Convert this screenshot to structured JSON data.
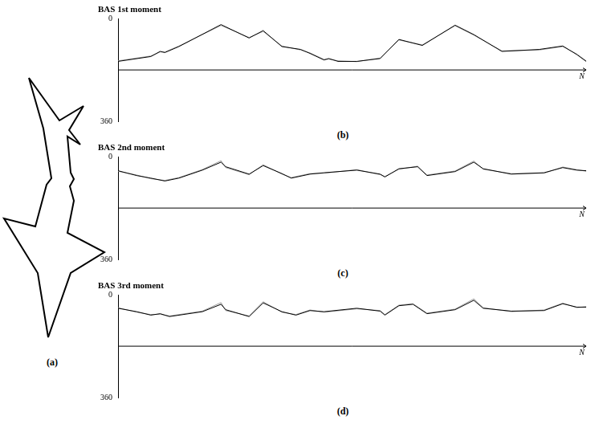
{
  "figure": {
    "panel_a_label": "(a)"
  },
  "chart_data": [
    {
      "type": "line",
      "title": "BAS 1st moment",
      "annotation": "(b)",
      "xlabel": "N",
      "x": [
        0,
        7,
        9,
        10,
        13,
        22,
        28,
        31,
        35,
        39,
        41,
        44,
        45,
        47,
        51,
        56,
        60,
        65,
        72,
        76,
        82,
        90,
        95,
        98,
        100
      ],
      "xlim": [
        0,
        100
      ],
      "ylim": [
        360,
        0
      ],
      "yticks": [
        0,
        360
      ],
      "grid": false,
      "tick_labels": "y",
      "series": [
        {
          "color": "#000000",
          "values": [
            150,
            133,
            115,
            119,
            98,
            21,
            68,
            42,
            98,
            108,
            122,
            145,
            140,
            150,
            150,
            140,
            73,
            94,
            23,
            56,
            115,
            108,
            96,
            126,
            150
          ]
        },
        {
          "color": "#a0a0a0",
          "values": [
            148,
            131,
            117,
            117,
            96,
            24,
            66,
            45,
            96,
            110,
            120,
            143,
            142,
            148,
            151,
            138,
            75,
            92,
            25,
            58,
            113,
            110,
            98,
            124,
            148
          ]
        }
      ]
    },
    {
      "type": "line",
      "title": "BAS 2nd moment",
      "annotation": "(c)",
      "xlabel": "N",
      "x": [
        0,
        4,
        7,
        10,
        13,
        18,
        22,
        23,
        28,
        31,
        35,
        37,
        41,
        44,
        51,
        56,
        57,
        60,
        64,
        66,
        72,
        76,
        78,
        84,
        91,
        95,
        98,
        100
      ],
      "xlim": [
        0,
        100
      ],
      "ylim": [
        360,
        0
      ],
      "yticks": [
        0,
        360
      ],
      "grid": false,
      "tick_labels": "y",
      "series": [
        {
          "color": "#000000",
          "values": [
            49,
            66,
            75,
            85,
            75,
            47,
            19,
            35,
            61,
            31,
            59,
            75,
            61,
            56,
            47,
            61,
            71,
            42,
            35,
            66,
            52,
            19,
            42,
            61,
            56,
            38,
            47,
            49
          ]
        },
        {
          "color": "#a0a0a0",
          "values": [
            51,
            64,
            77,
            83,
            73,
            45,
            14,
            38,
            63,
            28,
            61,
            73,
            59,
            58,
            45,
            63,
            69,
            44,
            33,
            64,
            50,
            15,
            44,
            59,
            58,
            36,
            45,
            51
          ]
        }
      ]
    },
    {
      "type": "line",
      "title": "BAS 3rd moment",
      "annotation": "(d)",
      "xlabel": "N",
      "x": [
        0,
        4,
        7,
        9,
        11,
        18,
        22,
        23,
        28,
        31,
        35,
        38,
        41,
        44,
        51,
        56,
        57,
        60,
        63,
        66,
        72,
        76,
        78,
        84,
        91,
        95,
        98,
        100
      ],
      "xlim": [
        0,
        100
      ],
      "ylim": [
        360,
        0
      ],
      "yticks": [
        0,
        360
      ],
      "grid": false,
      "tick_labels": "y",
      "series": [
        {
          "color": "#000000",
          "values": [
            47,
            59,
            71,
            66,
            76,
            59,
            33,
            52,
            76,
            28,
            59,
            71,
            55,
            59,
            47,
            57,
            71,
            38,
            33,
            66,
            52,
            19,
            47,
            57,
            55,
            31,
            43,
            43
          ]
        },
        {
          "color": "#a0a0a0",
          "values": [
            45,
            61,
            69,
            68,
            74,
            57,
            27,
            55,
            74,
            24,
            61,
            69,
            53,
            61,
            49,
            55,
            69,
            36,
            31,
            64,
            50,
            14,
            45,
            59,
            53,
            29,
            45,
            41
          ]
        }
      ]
    }
  ]
}
